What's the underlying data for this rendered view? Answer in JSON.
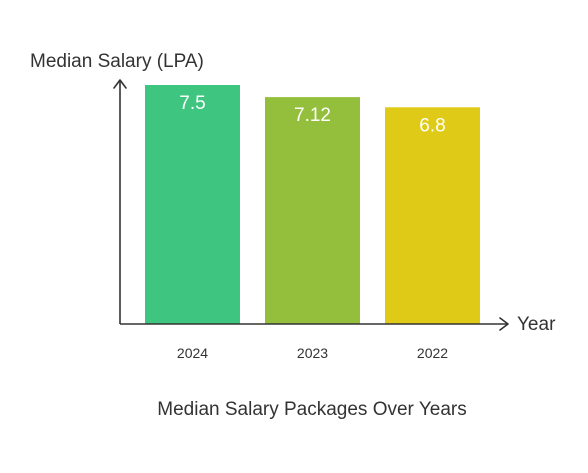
{
  "chart_data": {
    "type": "bar",
    "title": "Median Salary Packages Over Years",
    "xlabel": "Year",
    "ylabel": "Median Salary (LPA)",
    "categories": [
      "2024",
      "2023",
      "2022"
    ],
    "values": [
      7.5,
      7.12,
      6.8
    ],
    "value_labels": [
      "7.5",
      "7.12",
      "6.8"
    ],
    "bar_colors": [
      "#3ec57f",
      "#93bf3c",
      "#dfca17"
    ],
    "ylim": [
      0,
      7.5
    ],
    "grid": false,
    "legend": "none"
  },
  "colors": {
    "axis": "#333333",
    "text": "#333333",
    "value_label": "#ffffff"
  }
}
